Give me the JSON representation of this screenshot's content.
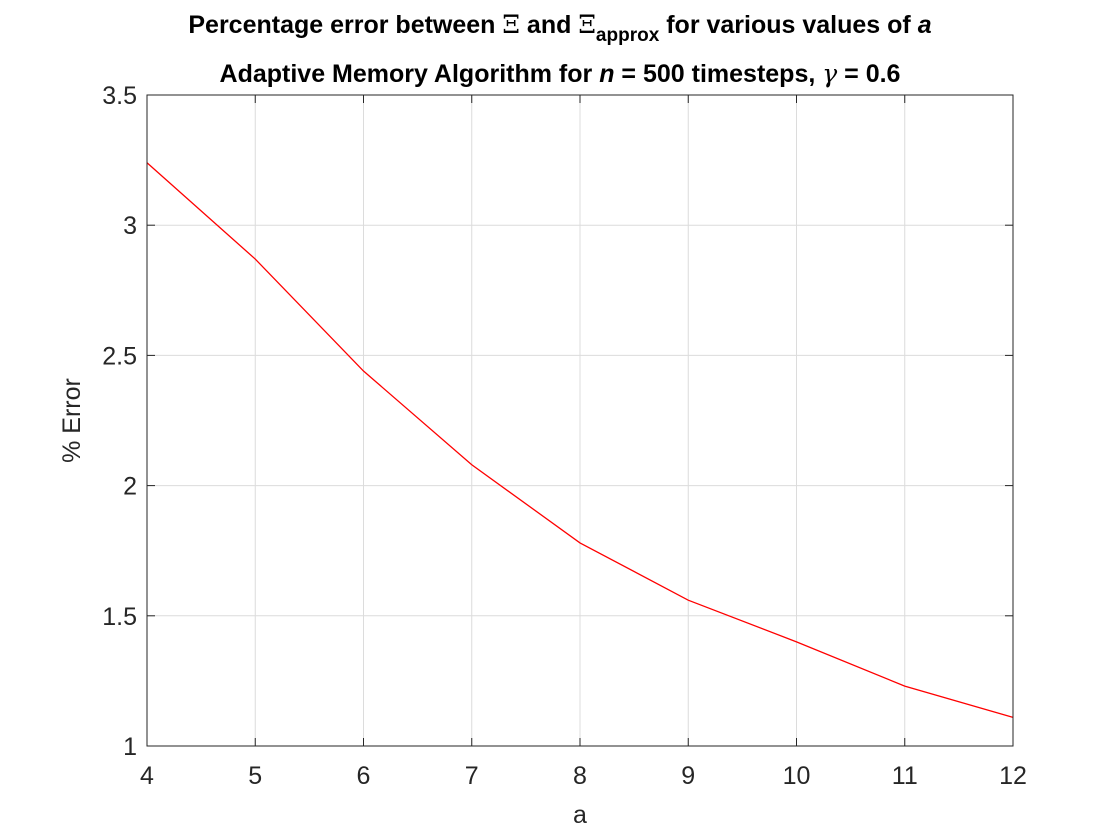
{
  "chart_data": {
    "type": "line",
    "title": {
      "line1": {
        "pre": "Percentage error between ",
        "xi1": "Ξ",
        "mid": " and ",
        "xi2": "Ξ",
        "sub": "approx",
        "post": " for various values of ",
        "var": "a"
      },
      "line2": {
        "pre": "Adaptive Memory Algorithm for ",
        "var_n": "n",
        "mid": " = 500 timesteps, ",
        "gamma": "γ",
        "post": " = 0.6"
      }
    },
    "xlabel": "a",
    "ylabel": "% Error",
    "xlim": [
      4,
      12
    ],
    "ylim": [
      1,
      3.5
    ],
    "xticks": [
      4,
      5,
      6,
      7,
      8,
      9,
      10,
      11,
      12
    ],
    "yticks": [
      1,
      1.5,
      2,
      2.5,
      3,
      3.5
    ],
    "ytick_labels": [
      "1",
      "1.5",
      "2",
      "2.5",
      "3",
      "3.5"
    ],
    "grid": true,
    "series": [
      {
        "color": "#ff0000",
        "x": [
          4,
          5,
          6,
          7,
          8,
          9,
          10,
          11,
          12
        ],
        "y": [
          3.24,
          2.87,
          2.44,
          2.08,
          1.78,
          1.56,
          1.4,
          1.23,
          1.11
        ]
      }
    ]
  }
}
